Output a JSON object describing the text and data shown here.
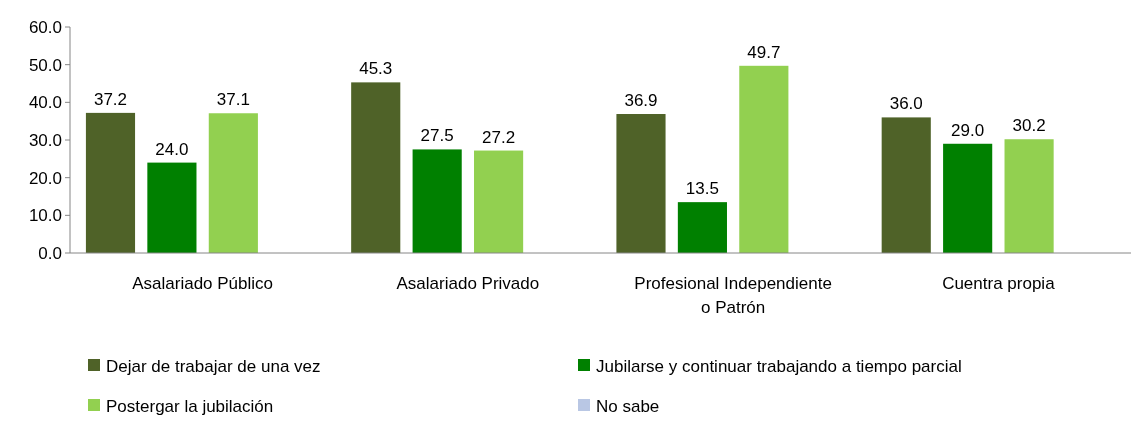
{
  "chart_data": {
    "type": "bar",
    "categories": [
      "Asalariado Público",
      "Asalariado Privado",
      "Profesional Independiente\no Patrón",
      "Cuentra propia"
    ],
    "series": [
      {
        "name": "Dejar de trabajar de una vez",
        "color": "#4f6228",
        "values": [
          37.2,
          45.3,
          36.9,
          36.0
        ],
        "value_labels": [
          "37.2",
          "45.3",
          "36.9",
          "36.0"
        ]
      },
      {
        "name": "Jubilarse y continuar trabajando a tiempo parcial",
        "color": "#008000",
        "values": [
          24.0,
          27.5,
          13.5,
          29.0
        ],
        "value_labels": [
          "24.0",
          "27.5",
          "13.5",
          "29.0"
        ]
      },
      {
        "name": "Postergar la jubilación",
        "color": "#92d050",
        "values": [
          37.1,
          27.2,
          49.7,
          30.2
        ],
        "value_labels": [
          "37.1",
          "27.2",
          "49.7",
          "30.2"
        ]
      },
      {
        "name": "No sabe",
        "color": "#b9c7e4",
        "values": [
          null,
          null,
          null,
          null
        ]
      }
    ],
    "ylim": [
      0,
      60
    ],
    "yticks": [
      {
        "value": 0,
        "label": "0.0"
      },
      {
        "value": 10,
        "label": "10.0"
      },
      {
        "value": 20,
        "label": "20.0"
      },
      {
        "value": 30,
        "label": "30.0"
      },
      {
        "value": 40,
        "label": "40.0"
      },
      {
        "value": 50,
        "label": "50.0"
      },
      {
        "value": 60,
        "label": "60.0"
      }
    ],
    "legend": "bottom"
  }
}
